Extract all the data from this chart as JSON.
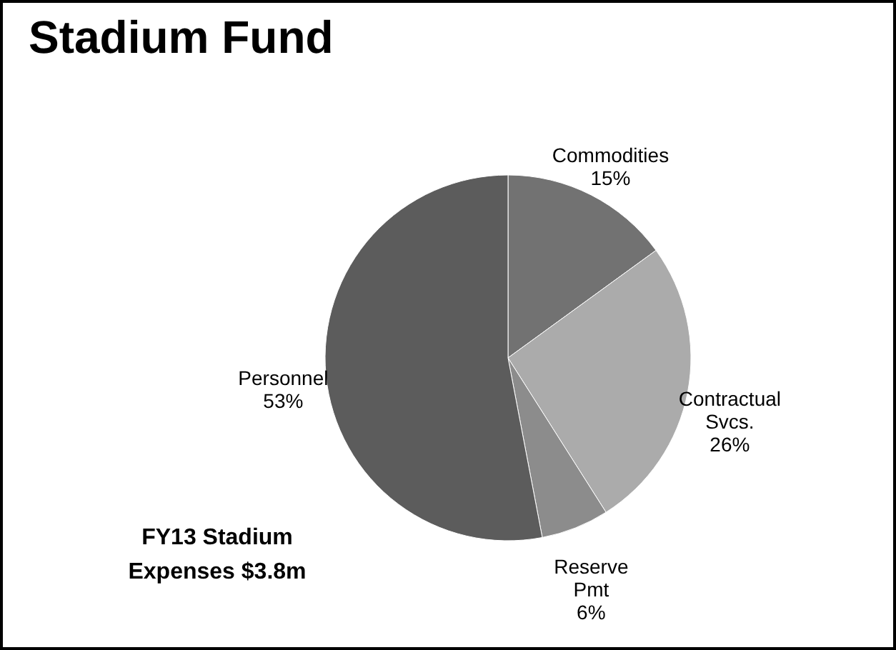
{
  "chart_data": {
    "type": "pie",
    "title": "Stadium Fund",
    "categories": [
      "Commodities",
      "Contractual Svcs.",
      "Reserve Pmt",
      "Personnel"
    ],
    "values": [
      15,
      26,
      6,
      53
    ],
    "value_labels": [
      "15%",
      "26%",
      "6%",
      "53%"
    ],
    "colors": [
      "#727272",
      "#ababab",
      "#8c8c8c",
      "#5c5c5c"
    ],
    "legend": false,
    "annotations": [
      "FY13 Stadium\nExpenses $3.8m"
    ]
  }
}
